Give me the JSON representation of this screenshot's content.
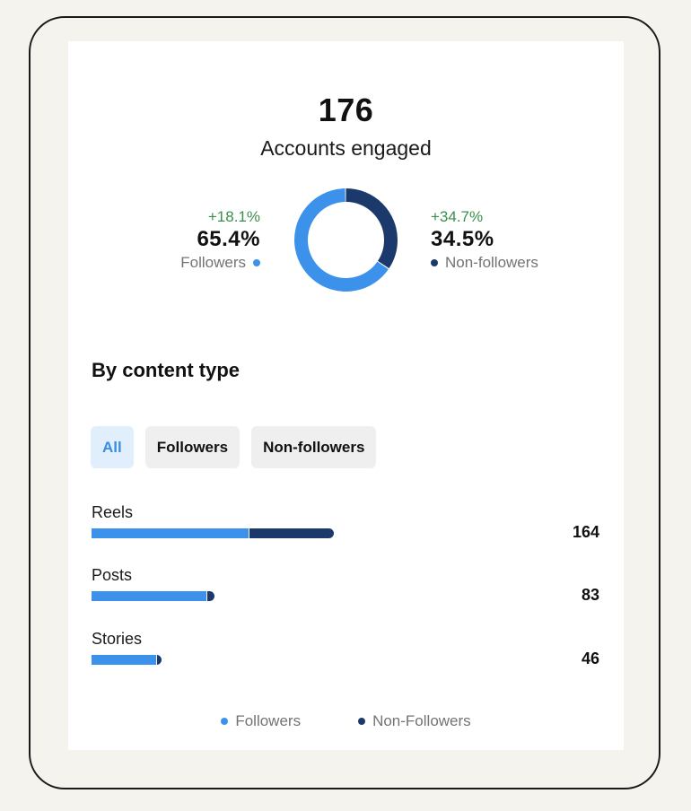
{
  "summary": {
    "total": "176",
    "label": "Accounts engaged"
  },
  "breakdown": {
    "followers": {
      "delta": "+18.1%",
      "percent": "65.4%",
      "label": "Followers",
      "fraction": 0.654
    },
    "non_followers": {
      "delta": "+34.7%",
      "percent": "34.5%",
      "label": "Non-followers",
      "fraction": 0.345
    }
  },
  "colors": {
    "followers": "#3c92ea",
    "non_followers": "#1b3a6b",
    "positive_delta": "#3a8f4a"
  },
  "section_title": "By content type",
  "tabs": [
    {
      "label": "All",
      "active": true
    },
    {
      "label": "Followers",
      "active": false
    },
    {
      "label": "Non-followers",
      "active": false
    }
  ],
  "content_rows": [
    {
      "label": "Reels",
      "value": "164",
      "total": 164,
      "followers": 106,
      "non_followers": 58
    },
    {
      "label": "Posts",
      "value": "83",
      "total": 83,
      "followers": 78,
      "non_followers": 5
    },
    {
      "label": "Stories",
      "value": "46",
      "total": 46,
      "followers": 44,
      "non_followers": 2
    }
  ],
  "legend": {
    "followers": "Followers",
    "non_followers": "Non-Followers"
  },
  "chart_data": [
    {
      "type": "pie",
      "categories": [
        "Followers",
        "Non-followers"
      ],
      "values": [
        65.4,
        34.5
      ]
    },
    {
      "type": "bar",
      "categories": [
        "Reels",
        "Posts",
        "Stories"
      ],
      "series": [
        {
          "name": "Followers",
          "values": [
            106,
            78,
            44
          ]
        },
        {
          "name": "Non-Followers",
          "values": [
            58,
            5,
            2
          ]
        }
      ],
      "totals": [
        164,
        83,
        46
      ]
    }
  ]
}
